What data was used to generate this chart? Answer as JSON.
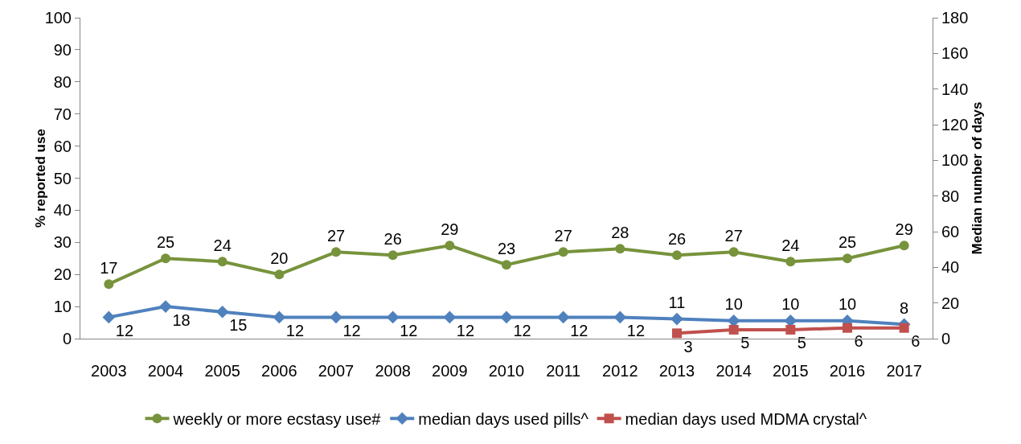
{
  "chart_data": {
    "type": "line",
    "ylabel": "% reported use",
    "y2label": "Median number of days",
    "categories": [
      "2003",
      "2004",
      "2005",
      "2006",
      "2007",
      "2008",
      "2009",
      "2010",
      "2011",
      "2012",
      "2013",
      "2014",
      "2015",
      "2016",
      "2017"
    ],
    "series": [
      {
        "name": "weekly or more ecstasy use#",
        "color": "#77933c",
        "marker": "circle",
        "values": [
          17,
          25,
          24,
          20,
          27,
          26,
          29,
          23,
          27,
          28,
          26,
          27,
          24,
          25,
          29
        ]
      },
      {
        "name": "median days used pills^",
        "color": "#4f81bd",
        "marker": "diamond",
        "axis": "y2",
        "values": [
          12,
          18,
          15,
          12,
          12,
          12,
          12,
          12,
          12,
          12,
          11,
          10,
          10,
          10,
          8
        ]
      },
      {
        "name": "median days used MDMA crystal^",
        "color": "#c0504d",
        "marker": "square",
        "axis": "y2",
        "values": [
          null,
          null,
          null,
          null,
          null,
          null,
          null,
          null,
          null,
          null,
          3,
          5,
          5,
          6,
          6
        ]
      }
    ],
    "ylim": [
      0,
      100
    ],
    "yticks": [
      0,
      10,
      20,
      30,
      40,
      50,
      60,
      70,
      80,
      90,
      100
    ],
    "y2lim": [
      0,
      180
    ],
    "y2ticks": [
      0,
      20,
      40,
      60,
      80,
      100,
      120,
      140,
      160,
      180
    ],
    "data_labels": true,
    "grid": false,
    "legend": "bottom",
    "line_style": "solid"
  }
}
